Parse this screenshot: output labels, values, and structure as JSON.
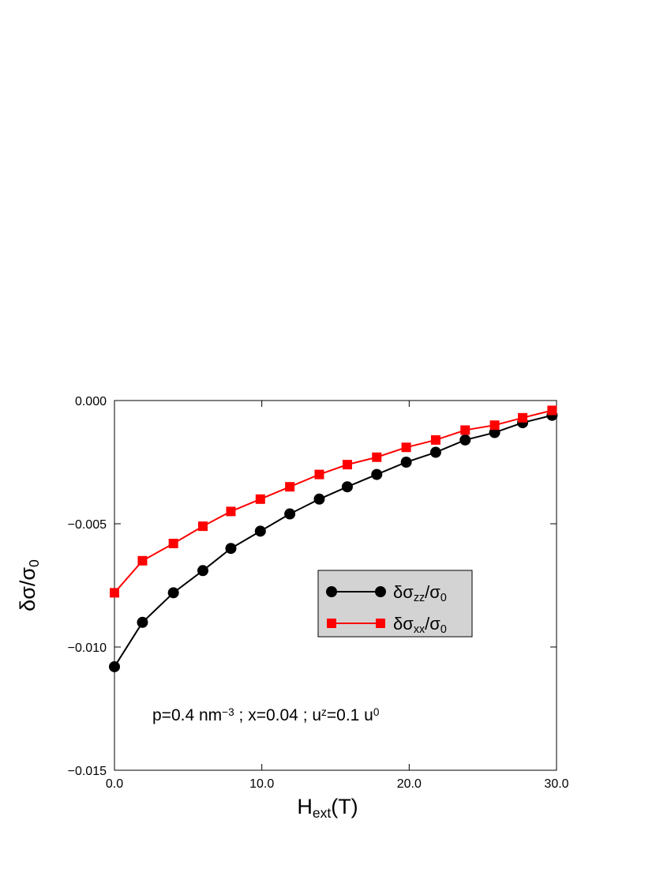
{
  "chart_data": {
    "type": "line",
    "xlabel": [
      {
        "text": "H"
      },
      {
        "text": "ext",
        "shift": "sub"
      },
      {
        "text": "(T)"
      }
    ],
    "ylabel": [
      {
        "text": "δσ/σ"
      },
      {
        "text": "0",
        "shift": "sub"
      }
    ],
    "annotation": [
      {
        "text": "p=0.4 nm"
      },
      {
        "text": "−3",
        "shift": "sup"
      },
      {
        "text": " ;  x=0.04  ;  u"
      },
      {
        "text": "z",
        "shift": "sup"
      },
      {
        "text": "=0.1 u"
      },
      {
        "text": "0",
        "shift": "sup"
      }
    ],
    "x": [
      0,
      1.9,
      4.0,
      6.0,
      7.9,
      9.9,
      11.9,
      13.9,
      15.8,
      17.8,
      19.8,
      21.8,
      23.8,
      25.8,
      27.7,
      29.7
    ],
    "series": [
      {
        "name": [
          {
            "text": "δσ"
          },
          {
            "text": "zz",
            "shift": "sub"
          },
          {
            "text": "/σ"
          },
          {
            "text": "0",
            "shift": "sub"
          }
        ],
        "color": "#000000",
        "marker": "circle",
        "values": [
          -0.0108,
          -0.009,
          -0.0078,
          -0.0069,
          -0.006,
          -0.0053,
          -0.0046,
          -0.004,
          -0.0035,
          -0.003,
          -0.0025,
          -0.0021,
          -0.0016,
          -0.0013,
          -0.0009,
          -0.0006
        ]
      },
      {
        "name": [
          {
            "text": "δσ"
          },
          {
            "text": "xx",
            "shift": "sub"
          },
          {
            "text": "/σ"
          },
          {
            "text": "0",
            "shift": "sub"
          }
        ],
        "color": "#ff0000",
        "marker": "square",
        "values": [
          -0.0078,
          -0.0065,
          -0.0058,
          -0.0051,
          -0.0045,
          -0.004,
          -0.0035,
          -0.003,
          -0.0026,
          -0.0023,
          -0.0019,
          -0.0016,
          -0.0012,
          -0.001,
          -0.0007,
          -0.0004
        ]
      }
    ],
    "xlim": [
      0,
      30
    ],
    "xticks": [
      {
        "value": 0,
        "label": "0.0"
      },
      {
        "value": 10,
        "label": "10.0"
      },
      {
        "value": 20,
        "label": "20.0"
      },
      {
        "value": 30,
        "label": "30.0"
      }
    ],
    "ylim": [
      -0.015,
      0
    ],
    "yticks": [
      {
        "value": -0.015,
        "label": "−0.015"
      },
      {
        "value": -0.01,
        "label": "−0.010"
      },
      {
        "value": -0.005,
        "label": "−0.005"
      },
      {
        "value": 0,
        "label": "0.000"
      }
    ],
    "legend_background": "#d3d3d3"
  }
}
